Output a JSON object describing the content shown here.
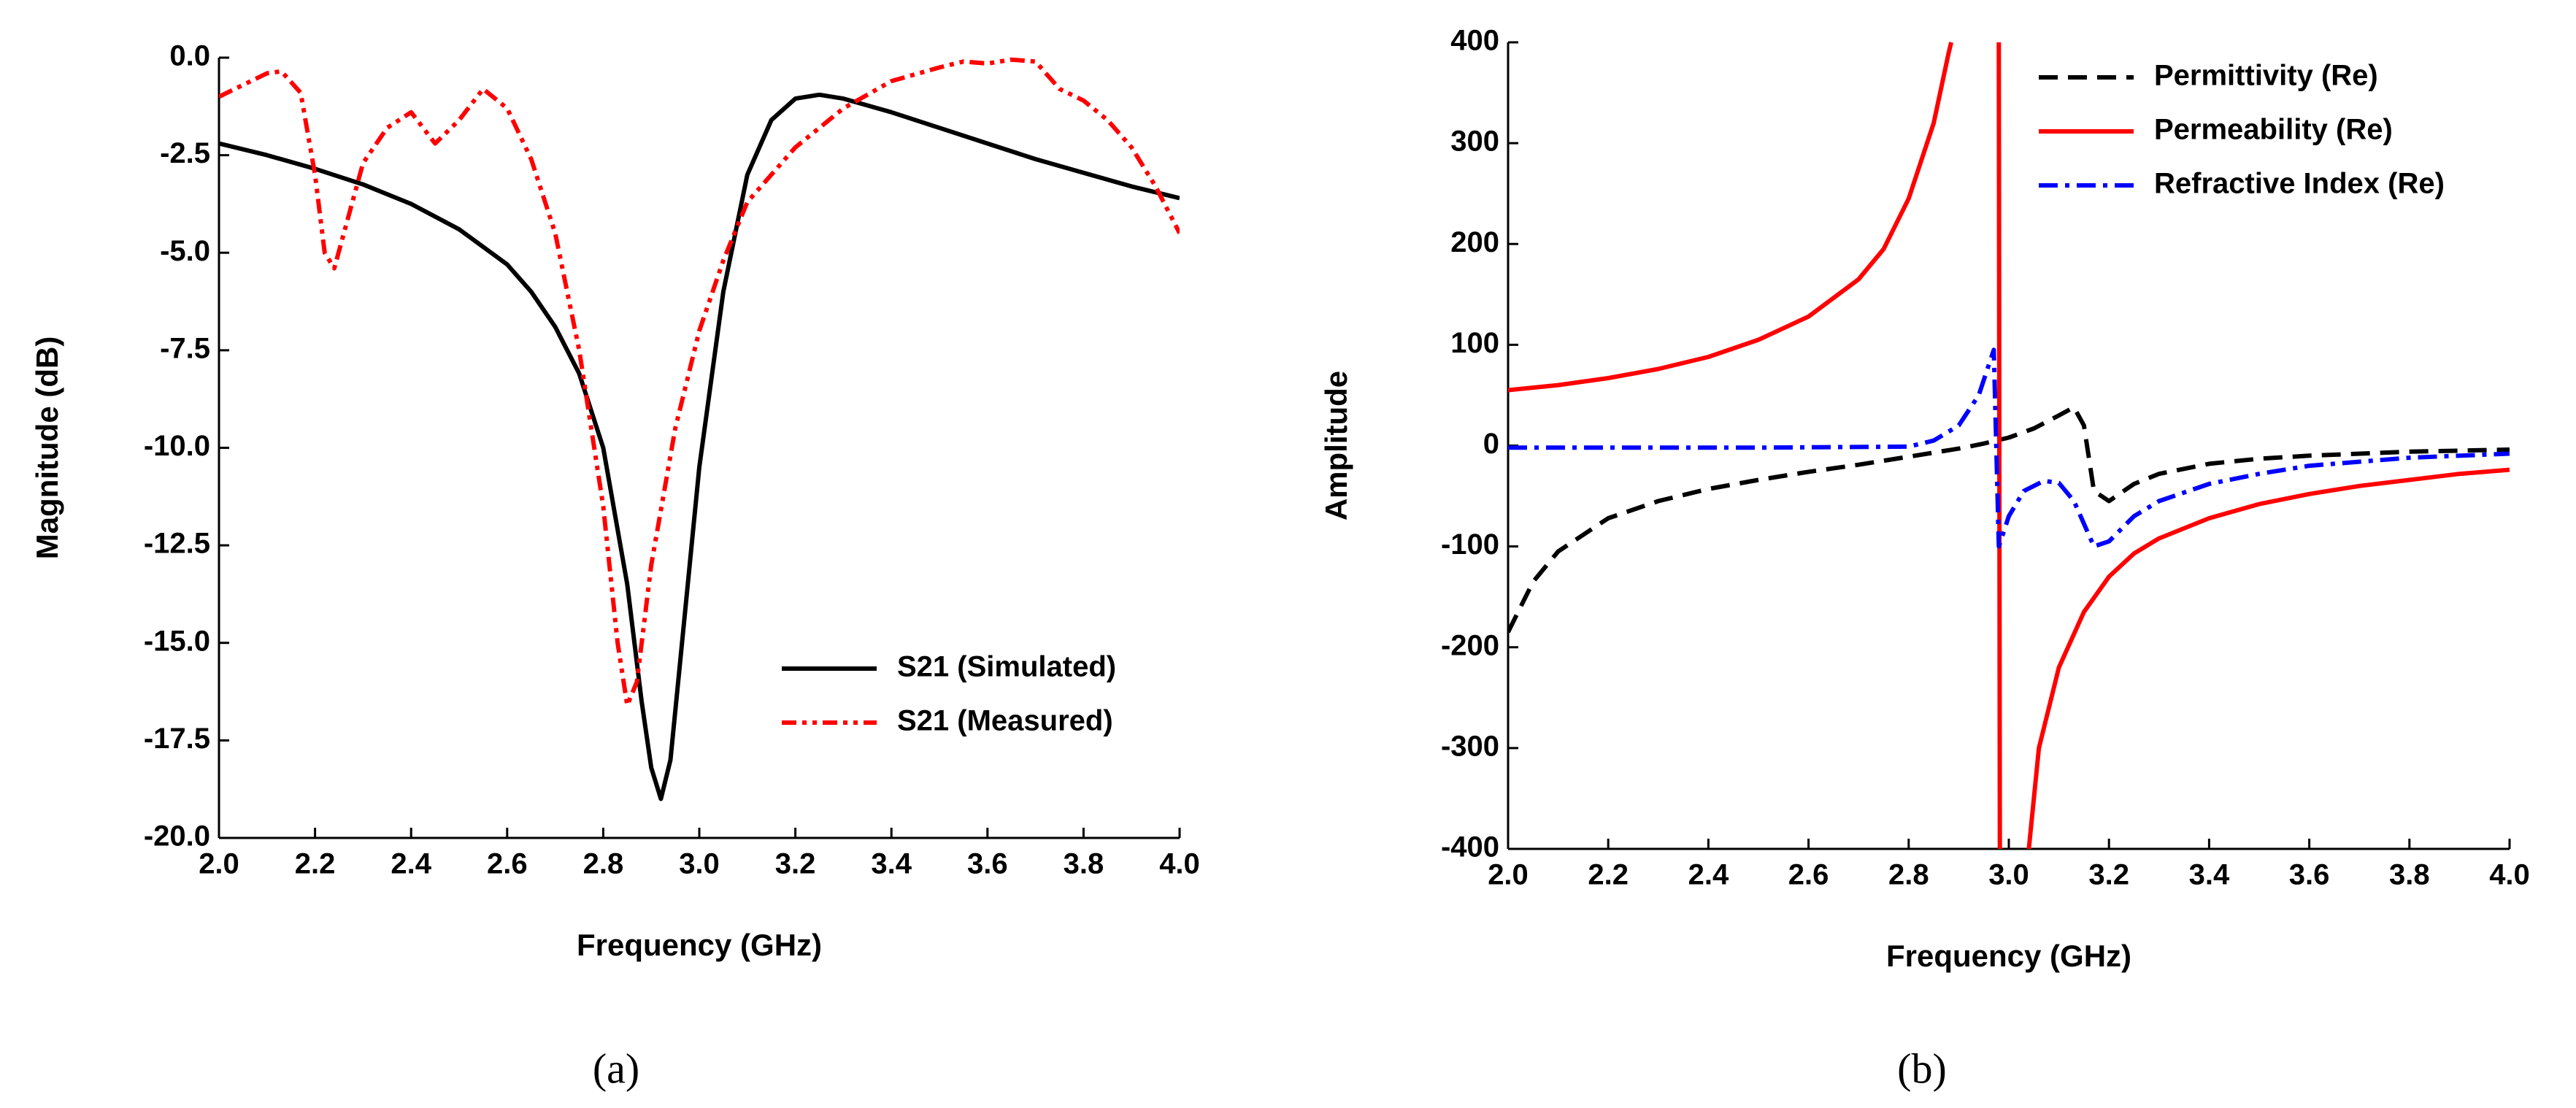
{
  "chart_data": [
    {
      "type": "line",
      "caption": "(a)",
      "xlabel": "Frequency (GHz)",
      "ylabel": "Magnitude (dB)",
      "xlim": [
        2.0,
        4.0
      ],
      "ylim": [
        -20,
        0
      ],
      "xticks": [
        {
          "value": 2.0,
          "label": "2.0"
        },
        2.2,
        2.4,
        2.6,
        2.8,
        {
          "value": 3.0,
          "label": "3.0"
        },
        3.2,
        3.4,
        3.6,
        3.8,
        {
          "value": 4.0,
          "label": "4.0"
        }
      ],
      "yticks": [
        {
          "value": 0,
          "label": "0.0"
        },
        -2.5,
        {
          "value": -5,
          "label": "-5.0"
        },
        -7.5,
        {
          "value": -10,
          "label": "-10.0"
        },
        -12.5,
        {
          "value": -15,
          "label": "-15.0"
        },
        -17.5,
        {
          "value": -20,
          "label": "-20.0"
        }
      ],
      "legend": "lower right",
      "series": [
        {
          "name": "S21 (Simulated)",
          "color": "#000000",
          "style": "solid",
          "x": [
            2.0,
            2.1,
            2.2,
            2.3,
            2.4,
            2.5,
            2.6,
            2.65,
            2.7,
            2.75,
            2.8,
            2.85,
            2.88,
            2.9,
            2.92,
            2.94,
            2.96,
            3.0,
            3.05,
            3.1,
            3.15,
            3.2,
            3.25,
            3.3,
            3.4,
            3.5,
            3.6,
            3.7,
            3.8,
            3.9,
            4.0
          ],
          "values": [
            -2.2,
            -2.5,
            -2.85,
            -3.25,
            -3.75,
            -4.4,
            -5.3,
            -6.0,
            -6.9,
            -8.1,
            -10.0,
            -13.5,
            -16.5,
            -18.2,
            -19.0,
            -18.0,
            -15.5,
            -10.5,
            -6.0,
            -3.0,
            -1.6,
            -1.05,
            -0.95,
            -1.05,
            -1.4,
            -1.8,
            -2.2,
            -2.6,
            -2.95,
            -3.3,
            -3.6
          ]
        },
        {
          "name": "S21 (Measured)",
          "color": "#ff0000",
          "style": "dashdotdot",
          "x": [
            2.0,
            2.05,
            2.1,
            2.13,
            2.17,
            2.2,
            2.22,
            2.24,
            2.26,
            2.3,
            2.35,
            2.4,
            2.45,
            2.5,
            2.55,
            2.6,
            2.65,
            2.7,
            2.75,
            2.8,
            2.83,
            2.85,
            2.87,
            2.9,
            2.95,
            3.0,
            3.05,
            3.1,
            3.2,
            3.3,
            3.4,
            3.5,
            3.55,
            3.6,
            3.65,
            3.7,
            3.75,
            3.8,
            3.85,
            3.9,
            3.95,
            4.0
          ],
          "values": [
            -1.0,
            -0.7,
            -0.4,
            -0.35,
            -0.9,
            -3.0,
            -5.0,
            -5.4,
            -4.5,
            -2.7,
            -1.8,
            -1.4,
            -2.2,
            -1.6,
            -0.8,
            -1.3,
            -2.6,
            -4.5,
            -7.5,
            -11.5,
            -15.0,
            -16.6,
            -16.0,
            -13.0,
            -9.5,
            -7.0,
            -5.2,
            -3.7,
            -2.3,
            -1.3,
            -0.6,
            -0.25,
            -0.1,
            -0.15,
            -0.05,
            -0.1,
            -0.8,
            -1.1,
            -1.6,
            -2.3,
            -3.3,
            -4.5
          ]
        }
      ]
    },
    {
      "type": "line",
      "caption": "(b)",
      "xlabel": "Frequency (GHz)",
      "ylabel": "Amplitude",
      "xlim": [
        2.0,
        4.0
      ],
      "ylim": [
        -400,
        400
      ],
      "xticks": [
        {
          "value": 2.0,
          "label": "2.0"
        },
        2.2,
        2.4,
        2.6,
        2.8,
        {
          "value": 3.0,
          "label": "3.0"
        },
        3.2,
        3.4,
        3.6,
        3.8,
        {
          "value": 4.0,
          "label": "4.0"
        }
      ],
      "yticks": [
        -400,
        -300,
        -200,
        -100,
        0,
        100,
        200,
        300,
        400
      ],
      "legend": "upper right",
      "series": [
        {
          "name": "Permittivity (Re)",
          "color": "#000000",
          "style": "dash",
          "x": [
            2.0,
            2.05,
            2.1,
            2.2,
            2.3,
            2.4,
            2.5,
            2.6,
            2.7,
            2.8,
            2.9,
            2.95,
            3.0,
            3.05,
            3.1,
            3.13,
            3.15,
            3.17,
            3.2,
            3.25,
            3.3,
            3.4,
            3.5,
            3.6,
            3.8,
            4.0
          ],
          "values": [
            -185,
            -135,
            -105,
            -72,
            -55,
            -43,
            -34,
            -26,
            -19,
            -11,
            -3,
            2,
            8,
            17,
            30,
            38,
            20,
            -45,
            -55,
            -38,
            -28,
            -18,
            -13,
            -10,
            -6,
            -4
          ]
        },
        {
          "name": "Permeability (Re)",
          "color": "#ff0000",
          "style": "solid",
          "x": [
            2.0,
            2.1,
            2.2,
            2.3,
            2.4,
            2.5,
            2.6,
            2.7,
            2.75,
            2.8,
            2.85,
            2.88,
            2.885,
            2.93,
            2.98,
            2.982,
            3.01,
            3.04,
            3.06,
            3.1,
            3.15,
            3.2,
            3.25,
            3.3,
            3.4,
            3.5,
            3.6,
            3.7,
            3.8,
            3.9,
            4.0
          ],
          "values": [
            55,
            60,
            67,
            76,
            88,
            105,
            128,
            165,
            195,
            245,
            320,
            390,
            400,
            null,
            400,
            -400,
            null,
            -400,
            -300,
            -220,
            -165,
            -130,
            -107,
            -92,
            -72,
            -58,
            -48,
            -40,
            -34,
            -28,
            -24
          ]
        },
        {
          "name": "Refractive Index (Re)",
          "color": "#0000ff",
          "style": "dashdot",
          "x": [
            2.0,
            2.5,
            2.8,
            2.85,
            2.9,
            2.94,
            2.97,
            2.98,
            3.0,
            3.03,
            3.07,
            3.1,
            3.13,
            3.17,
            3.2,
            3.25,
            3.3,
            3.4,
            3.5,
            3.6,
            3.8,
            4.0
          ],
          "values": [
            -2,
            -2,
            -1,
            5,
            20,
            50,
            95,
            -100,
            -70,
            -45,
            -35,
            -37,
            -55,
            -100,
            -95,
            -70,
            -55,
            -38,
            -28,
            -20,
            -12,
            -8
          ]
        }
      ]
    }
  ]
}
